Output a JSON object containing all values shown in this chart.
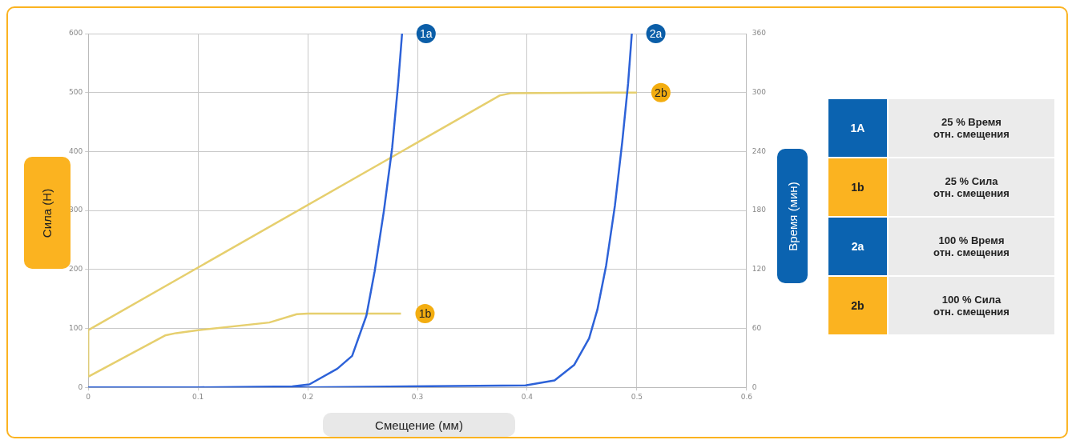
{
  "chart_data": [
    {
      "type": "line",
      "xlabel": "Смещение (мм)",
      "ylabel": "Сила (Н)",
      "y2label": "Время (мин)",
      "xlim": [
        0,
        0.6
      ],
      "xticks": [
        0,
        0.1,
        0.2,
        0.3,
        0.4,
        0.5,
        0.6
      ],
      "ylim": [
        0,
        600
      ],
      "yticks": [
        0,
        100,
        200,
        300,
        400,
        500,
        600
      ],
      "y2lim": [
        0,
        360
      ],
      "y2ticks": [
        0,
        60,
        120,
        180,
        240,
        300,
        360
      ],
      "grid": true,
      "legend": false,
      "marker": "none",
      "line_style": "solid",
      "series": [
        {
          "name": "1a",
          "color": "#2d62d8",
          "axis": "y2",
          "x": [
            0,
            0.1,
            0.186,
            0.2015,
            0.227,
            0.2405,
            0.2535,
            0.261,
            0.2695,
            0.277,
            0.2825,
            0.286
          ],
          "values": [
            0,
            0,
            1,
            3,
            19,
            32,
            73,
            118,
            180,
            244,
            310,
            360
          ]
        },
        {
          "name": "1b",
          "color": "#e6cf6e",
          "x": [
            0,
            0.07,
            0.08,
            0.1,
            0.165,
            0.19,
            0.2,
            0.285
          ],
          "values": [
            18,
            88,
            92,
            97,
            110,
            124,
            125,
            125
          ]
        },
        {
          "name": "2a",
          "color": "#2d62d8",
          "axis": "y2",
          "x": [
            0,
            0.2,
            0.3985,
            0.425,
            0.443,
            0.4565,
            0.464,
            0.472,
            0.48,
            0.4867,
            0.492,
            0.4954
          ],
          "values": [
            0,
            0,
            2,
            7,
            23,
            50,
            79,
            124,
            185,
            250,
            309,
            360
          ]
        },
        {
          "name": "2b",
          "color": "#e6cf6e",
          "x": [
            0,
            0,
            0.375,
            0.385,
            0.5
          ],
          "values": [
            18,
            97,
            495,
            499,
            500
          ]
        }
      ]
    },
    {
      "type": "other",
      "categories": [
        "1A",
        "1b",
        "2a",
        "2b"
      ],
      "colors": [
        "#0b63b0",
        "#fbb320",
        "#0b63b0",
        "#fbb320"
      ],
      "annotations": [
        "25 % Время\nотн. смещения",
        "25 % Сила\nотн. смещения",
        "100 % Время\nотн. смещения",
        "100 % Сила\nотн. смещения"
      ]
    }
  ]
}
